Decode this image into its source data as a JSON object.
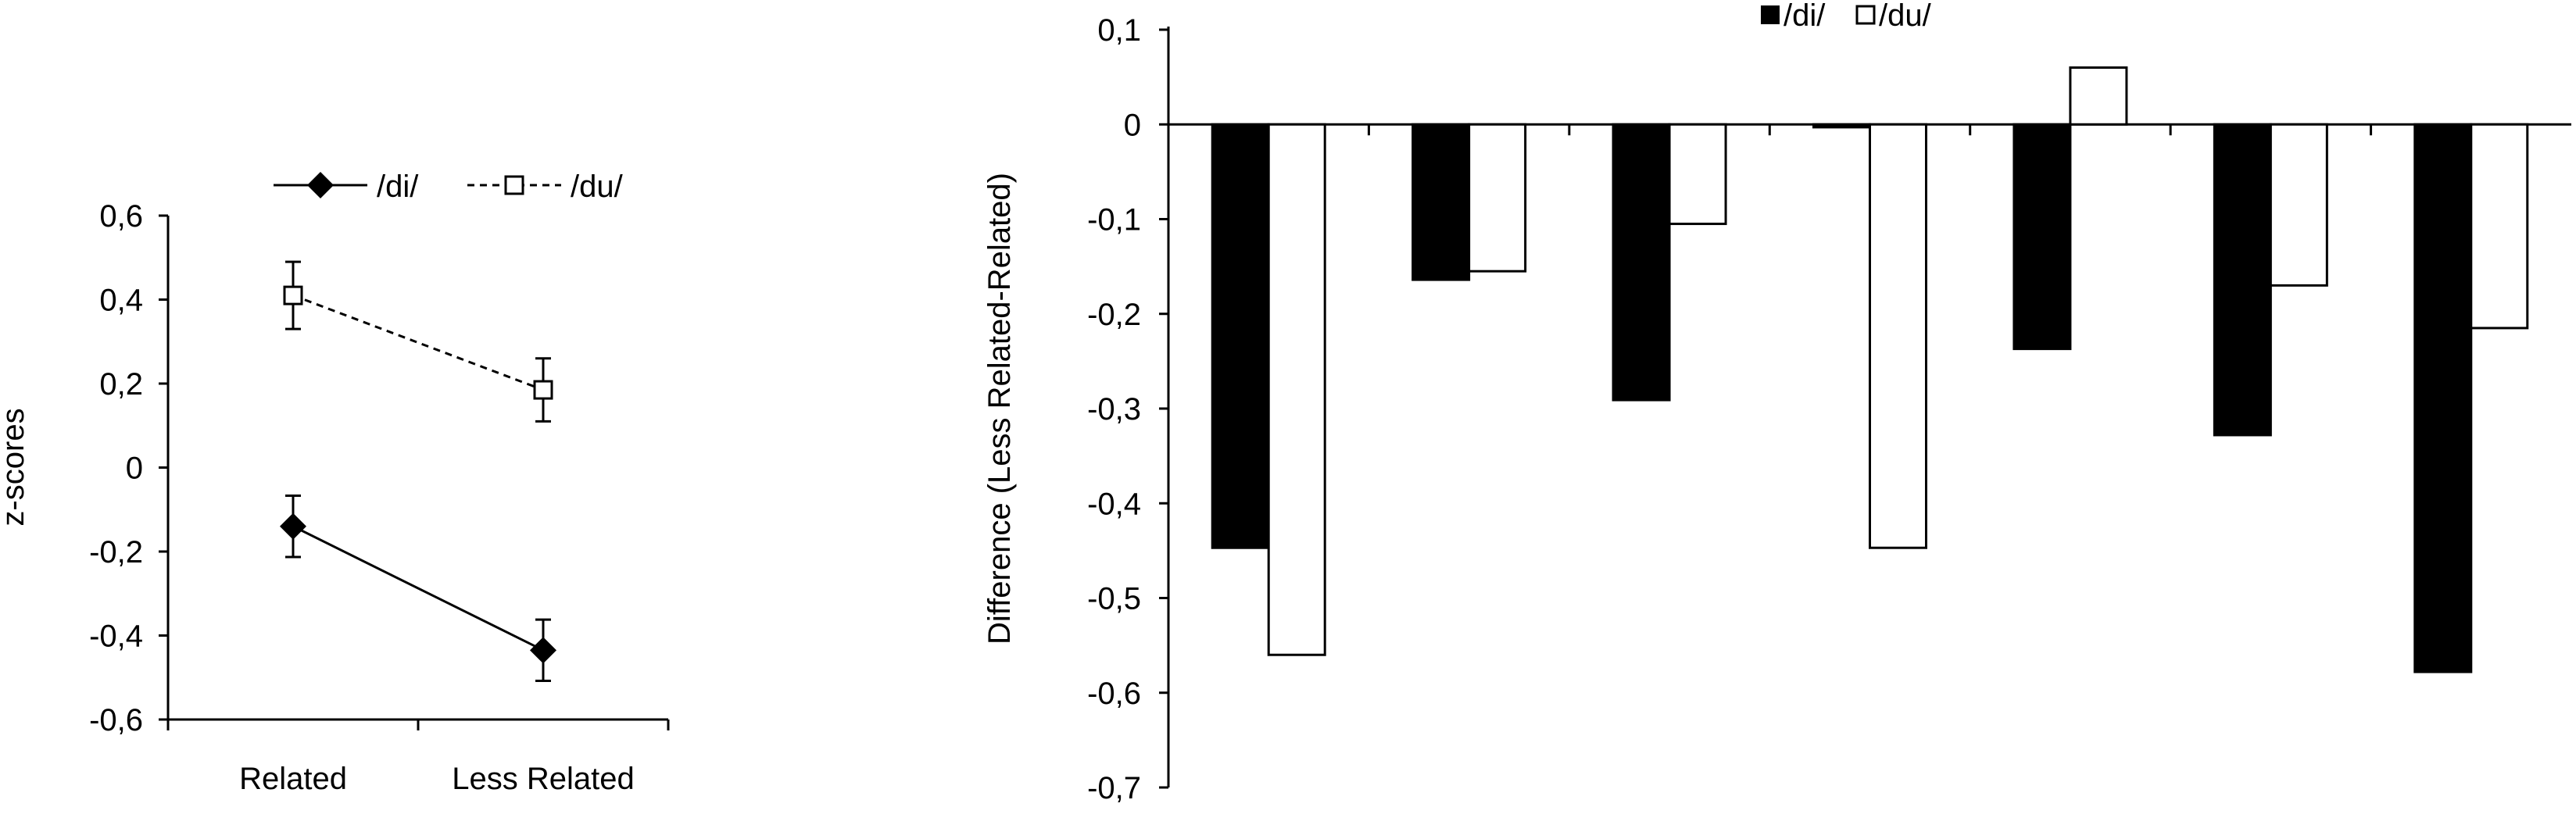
{
  "chart_data": [
    {
      "type": "line",
      "title": "",
      "xlabel": "",
      "ylabel": "z-scores",
      "categories": [
        "Related",
        "Less Related"
      ],
      "ylim": [
        -0.6,
        0.6
      ],
      "yticks": [
        "-0,6",
        "-0,4",
        "-0,2",
        "0",
        "0,2",
        "0,4",
        "0,6"
      ],
      "grid": false,
      "legend_position": "top",
      "series": [
        {
          "name": "/di/",
          "values": [
            -0.14,
            -0.435
          ],
          "errors": [
            0.073,
            0.073
          ],
          "marker": "filled-diamond",
          "line": "solid"
        },
        {
          "name": "/du/",
          "values": [
            0.41,
            0.185
          ],
          "errors": [
            0.08,
            0.075
          ],
          "marker": "open-square",
          "line": "dashed"
        }
      ]
    },
    {
      "type": "bar",
      "title": "",
      "xlabel": "",
      "ylabel": "Difference (Less Related-Related)",
      "categories": [
        "",
        "",
        "",
        "",
        "",
        "",
        ""
      ],
      "ylim": [
        -0.7,
        0.1
      ],
      "yticks": [
        "-0,7",
        "-0,6",
        "-0,5",
        "-0,4",
        "-0,3",
        "-0,2",
        "-0,1",
        "0",
        "0,1"
      ],
      "grid": false,
      "legend_position": "top-center",
      "series": [
        {
          "name": "/di/",
          "color": "#000000",
          "values": [
            -0.447,
            -0.164,
            -0.291,
            -0.003,
            -0.237,
            -0.328,
            -0.578
          ]
        },
        {
          "name": "/du/",
          "color": "#ffffff",
          "values": [
            -0.56,
            -0.155,
            -0.105,
            -0.447,
            0.06,
            -0.17,
            -0.215
          ]
        }
      ]
    }
  ]
}
